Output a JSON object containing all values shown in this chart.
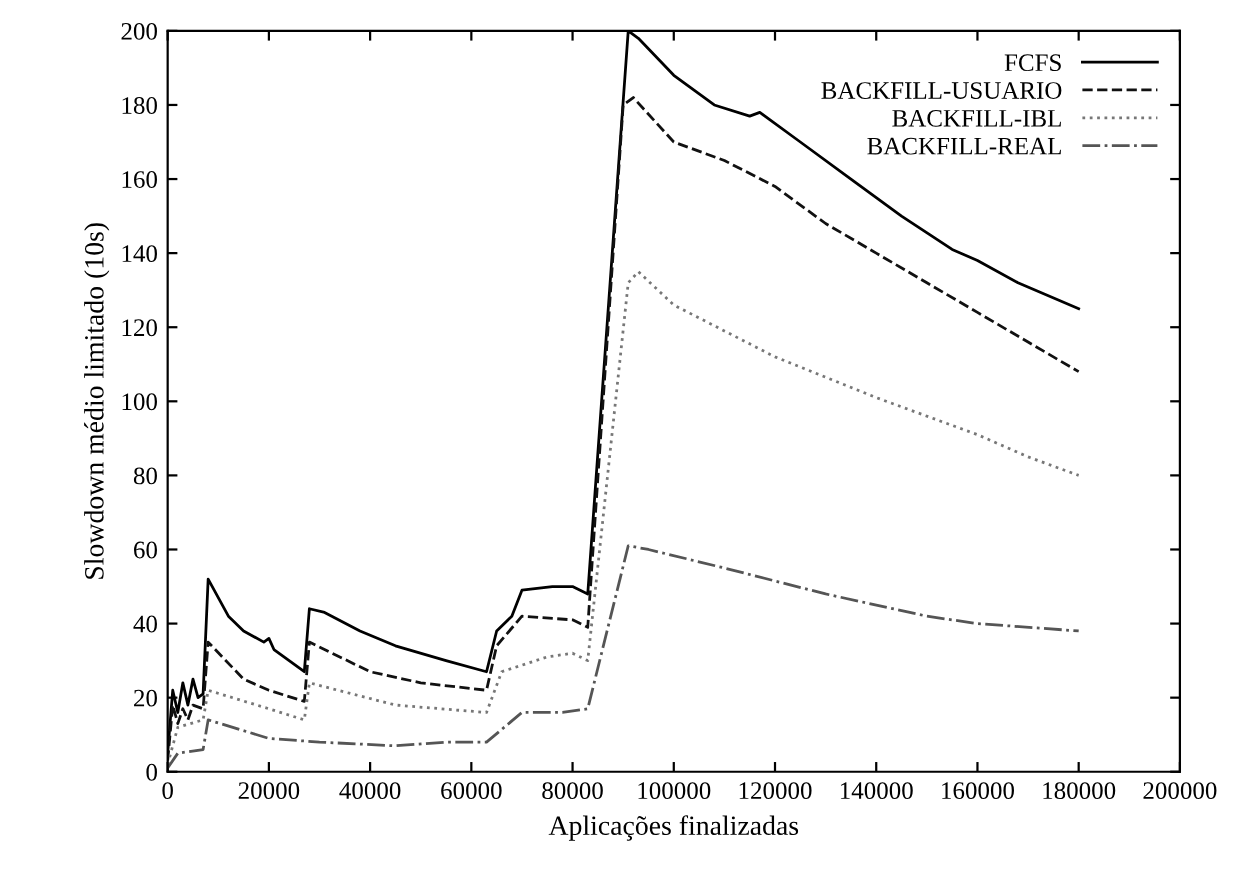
{
  "chart_data": {
    "type": "line",
    "xlabel": "Aplicações finalizadas",
    "ylabel": "Slowdown médio limitado (10s)",
    "xlim": [
      0,
      200000
    ],
    "xticks": [
      0,
      20000,
      40000,
      60000,
      80000,
      100000,
      120000,
      140000,
      160000,
      180000,
      200000
    ],
    "ylim": [
      0,
      200
    ],
    "yticks": [
      0,
      20,
      40,
      60,
      80,
      100,
      120,
      140,
      160,
      180,
      200
    ],
    "grid": false,
    "legend": "top right",
    "marker": "none",
    "series": [
      {
        "name": "FCFS",
        "color": "#000000",
        "line_style": "solid",
        "x": [
          0,
          1000,
          2000,
          3000,
          4000,
          5000,
          6000,
          7000,
          8000,
          12000,
          15000,
          19000,
          20000,
          21000,
          27000,
          28000,
          31000,
          38000,
          45000,
          55000,
          63000,
          65000,
          68000,
          70000,
          76000,
          80000,
          83000,
          91000,
          93000,
          100000,
          108000,
          115000,
          117000,
          125000,
          135000,
          145000,
          155000,
          160000,
          168000,
          180000
        ],
        "values": [
          5,
          22,
          16,
          24,
          18,
          25,
          20,
          21,
          52,
          42,
          38,
          35,
          36,
          33,
          27,
          44,
          43,
          38,
          34,
          30,
          27,
          38,
          42,
          49,
          50,
          50,
          48,
          200,
          198,
          188,
          180,
          177,
          178,
          170,
          160,
          150,
          141,
          138,
          132,
          125
        ]
      },
      {
        "name": "BACKFILL-USUARIO",
        "color": "#111111",
        "line_style": "dashed",
        "x": [
          0,
          1000,
          2000,
          3000,
          4000,
          5000,
          7000,
          8000,
          15000,
          20000,
          27000,
          28000,
          40000,
          50000,
          63000,
          65000,
          70000,
          80000,
          83000,
          90000,
          92000,
          100000,
          110000,
          120000,
          130000,
          140000,
          150000,
          160000,
          170000,
          180000
        ],
        "values": [
          3,
          18,
          13,
          17,
          14,
          18,
          17,
          35,
          25,
          22,
          19,
          35,
          27,
          24,
          22,
          34,
          42,
          41,
          39,
          180,
          182,
          170,
          165,
          158,
          148,
          140,
          132,
          124,
          116,
          108
        ]
      },
      {
        "name": "BACKFILL-IBL",
        "color": "#777777",
        "line_style": "dotted",
        "x": [
          0,
          2000,
          7000,
          8000,
          20000,
          27000,
          28000,
          45000,
          63000,
          66000,
          75000,
          80000,
          83000,
          91000,
          93000,
          100000,
          120000,
          140000,
          160000,
          170000,
          180000
        ],
        "values": [
          2,
          12,
          14,
          22,
          17,
          14,
          24,
          18,
          16,
          27,
          31,
          32,
          30,
          132,
          135,
          126,
          112,
          101,
          91,
          85,
          80
        ]
      },
      {
        "name": "BACKFILL-REAL",
        "color": "#555555",
        "line_style": "dashdot",
        "x": [
          0,
          2000,
          7000,
          8000,
          20000,
          30000,
          45000,
          55000,
          63000,
          70000,
          78000,
          83000,
          91000,
          95000,
          110000,
          130000,
          150000,
          160000,
          180000
        ],
        "values": [
          1,
          5,
          6,
          14,
          9,
          8,
          7,
          8,
          8,
          16,
          16,
          17,
          61,
          60,
          55,
          48,
          42,
          40,
          38
        ]
      }
    ]
  }
}
